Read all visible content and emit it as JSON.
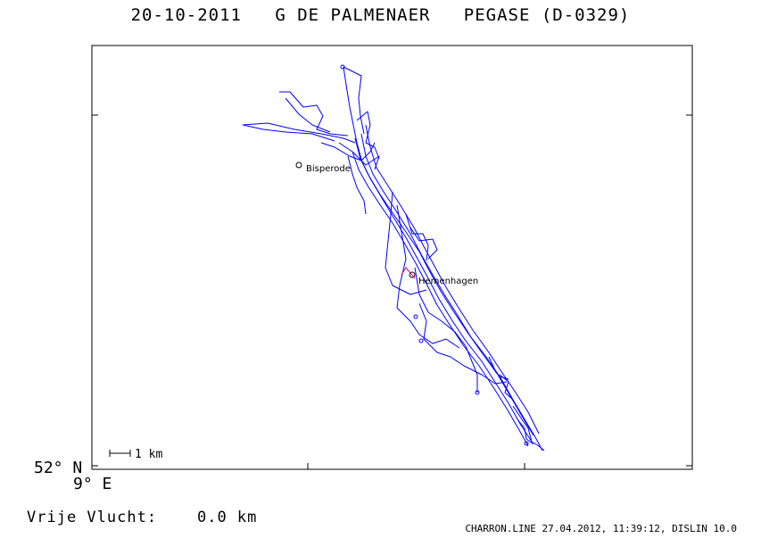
{
  "header": {
    "title": "20-10-2011   G DE PALMENAER   PEGASE (D-0329)"
  },
  "map": {
    "frame_color": "#000000",
    "track_color": "#0000ff",
    "marker_color": "#e0007a",
    "lat_label": "52° N",
    "lon_label": "9° E",
    "scale_label": "1 km",
    "places": [
      {
        "name": "Bisperode"
      },
      {
        "name": "Hemenhagen"
      }
    ]
  },
  "footer": {
    "distance_label": "Vrije Vlucht:    0.0 km",
    "meta": "CHARRON.LINE 27.04.2012, 11:39:12, DISLIN 10.0"
  }
}
